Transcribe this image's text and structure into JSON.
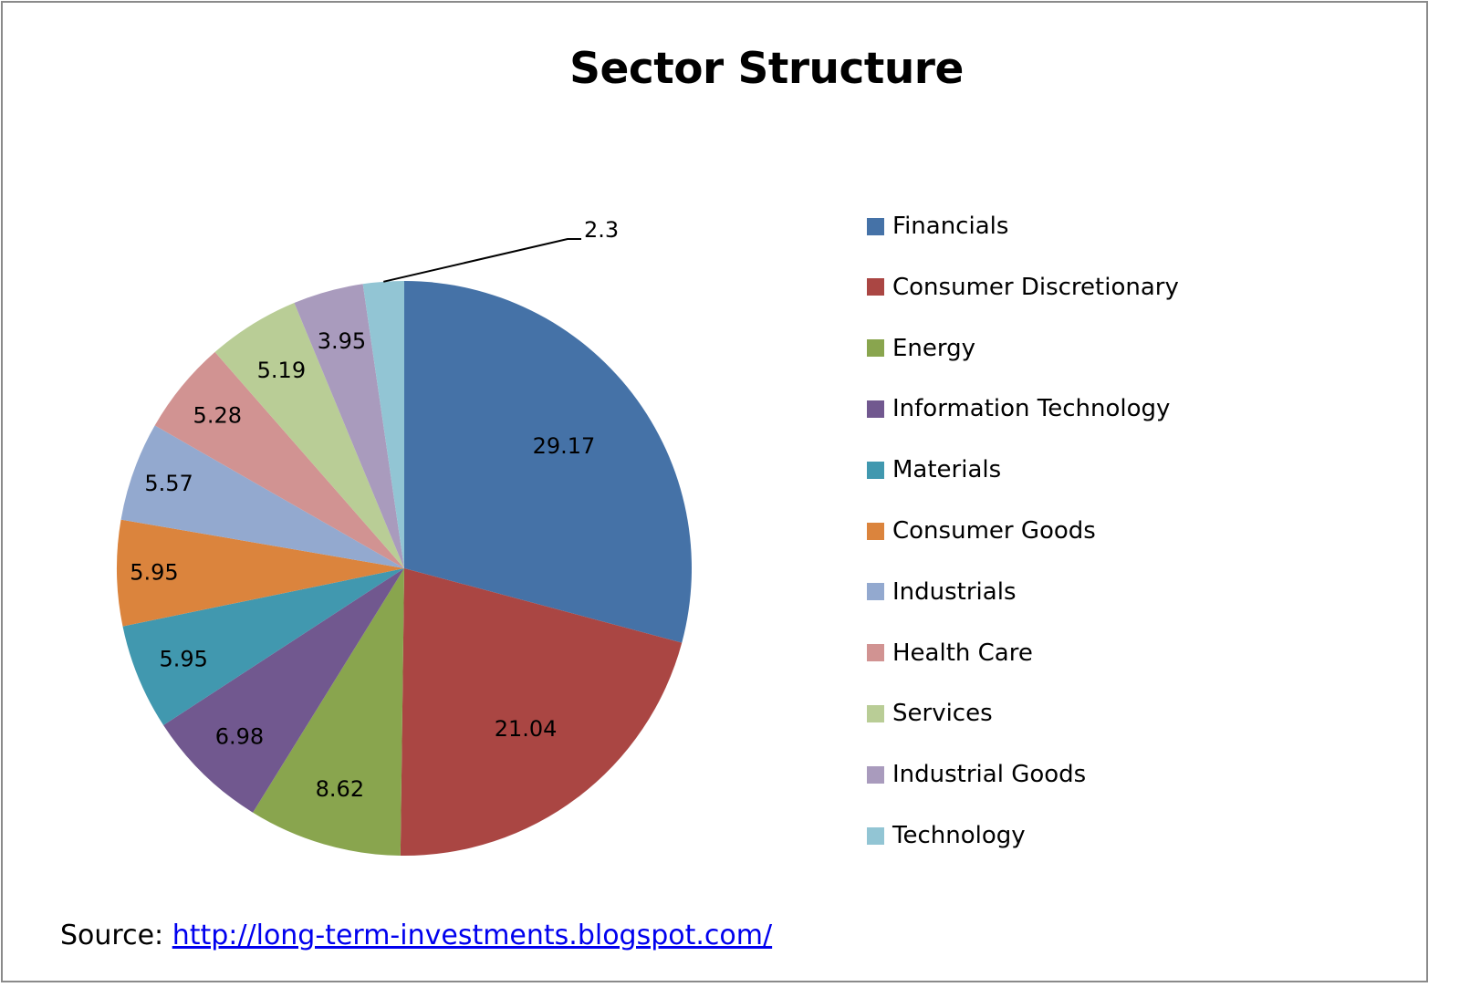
{
  "chart_data": {
    "type": "pie",
    "title": "Sector Structure",
    "categories": [
      "Financials",
      "Consumer Discretionary",
      "Energy",
      "Information Technology",
      "Materials",
      "Consumer Goods",
      "Industrials",
      "Health Care",
      "Services",
      "Industrial Goods",
      "Technology"
    ],
    "values": [
      29.17,
      21.04,
      8.62,
      6.98,
      5.95,
      5.95,
      5.57,
      5.28,
      5.19,
      3.95,
      2.3
    ],
    "data_labels": [
      "29.17",
      "21.04",
      "8.62",
      "6.98",
      "5.95",
      "5.95",
      "5.57",
      "5.28",
      "5.19",
      "3.95",
      "2.3"
    ],
    "colors": [
      "#4572a7",
      "#aa4643",
      "#89a54e",
      "#71588f",
      "#4198af",
      "#db843d",
      "#93a9cf",
      "#d19392",
      "#b9cd96",
      "#a99bbd",
      "#92c5d4"
    ],
    "legend_position": "right"
  },
  "source": {
    "label": "Source:",
    "link_text": "http://long-term-investments.blogspot.com/"
  }
}
